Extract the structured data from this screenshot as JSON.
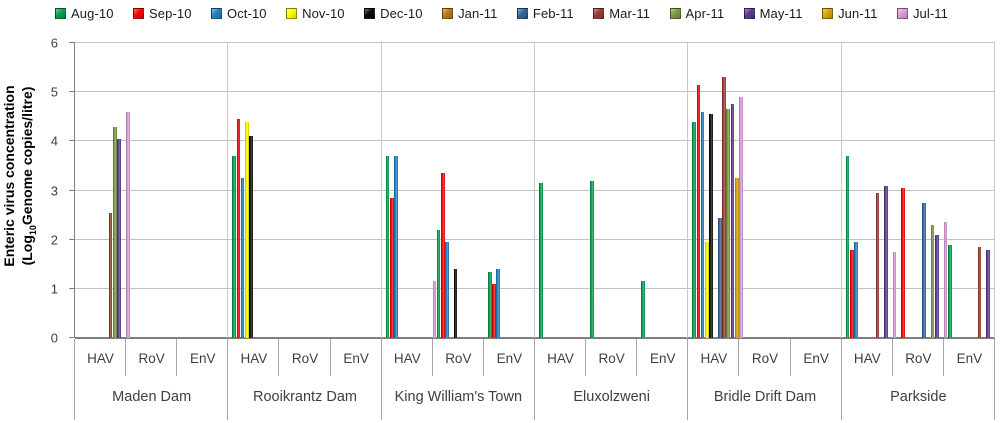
{
  "y_axis": {
    "title_line1": "Enteric virus concentration",
    "title_line2_pre": "(Log",
    "title_sub": "10",
    "title_line2_post": "Genome copies/litre)",
    "ticks": [
      6,
      5,
      4,
      3,
      2,
      1,
      0
    ]
  },
  "chart_data": {
    "type": "bar",
    "title": "",
    "xlabel": "",
    "ylabel": "Enteric virus concentration (Log10 Genome copies/litre)",
    "ylim": [
      0,
      6
    ],
    "yticks": [
      0,
      1,
      2,
      3,
      4,
      5,
      6
    ],
    "grid": true,
    "legend_position": "top",
    "months": [
      "Aug-10",
      "Sep-10",
      "Oct-10",
      "Nov-10",
      "Dec-10",
      "Jan-11",
      "Feb-11",
      "Mar-11",
      "Apr-11",
      "May-11",
      "Jun-11",
      "Jul-11"
    ],
    "colors": {
      "Aug-10": "#00a14b",
      "Sep-10": "#fe0000",
      "Oct-10": "#1f81c4",
      "Nov-10": "#ffff00",
      "Dec-10": "#0a0a0a",
      "Jan-11": "#bf7817",
      "Feb-11": "#31659c",
      "Mar-11": "#9c3a32",
      "Apr-11": "#7c9a3d",
      "May-11": "#5b3a8f",
      "Jun-11": "#d9a400",
      "Jul-11": "#de9cdb"
    },
    "virus_types": [
      "HAV",
      "RoV",
      "EnV"
    ],
    "sites": [
      {
        "name": "Maden Dam",
        "viruses": [
          {
            "name": "HAV",
            "values": {
              "Mar-11": 2.55,
              "Apr-11": 4.3,
              "May-11": 4.05,
              "Jul-11": 4.6
            }
          },
          {
            "name": "RoV",
            "values": {}
          },
          {
            "name": "EnV",
            "values": {}
          }
        ]
      },
      {
        "name": "Rooikrantz Dam",
        "viruses": [
          {
            "name": "HAV",
            "values": {
              "Aug-10": 3.7,
              "Sep-10": 4.45,
              "Oct-10": 3.25,
              "Nov-10": 4.4,
              "Dec-10": 4.1
            }
          },
          {
            "name": "RoV",
            "values": {}
          },
          {
            "name": "EnV",
            "values": {}
          }
        ]
      },
      {
        "name": "King William's Town",
        "viruses": [
          {
            "name": "HAV",
            "values": {
              "Aug-10": 3.7,
              "Sep-10": 2.85,
              "Oct-10": 3.7,
              "Jul-11": 1.15
            }
          },
          {
            "name": "RoV",
            "values": {
              "Aug-10": 2.2,
              "Sep-10": 3.35,
              "Oct-10": 1.95,
              "Dec-10": 1.4
            }
          },
          {
            "name": "EnV",
            "values": {
              "Aug-10": 1.35,
              "Sep-10": 1.1,
              "Oct-10": 1.4
            }
          }
        ]
      },
      {
        "name": "Eluxolzweni",
        "viruses": [
          {
            "name": "HAV",
            "values": {
              "Aug-10": 3.15
            }
          },
          {
            "name": "RoV",
            "values": {
              "Aug-10": 3.2
            }
          },
          {
            "name": "EnV",
            "values": {
              "Aug-10": 1.15
            }
          }
        ]
      },
      {
        "name": "Bridle Drift Dam",
        "viruses": [
          {
            "name": "HAV",
            "values": {
              "Aug-10": 4.4,
              "Sep-10": 5.15,
              "Oct-10": 4.6,
              "Nov-10": 1.95,
              "Dec-10": 4.55,
              "Feb-11": 2.45,
              "Mar-11": 5.3,
              "Apr-11": 4.65,
              "May-11": 4.75,
              "Jun-11": 3.25,
              "Jul-11": 4.9
            }
          },
          {
            "name": "RoV",
            "values": {}
          },
          {
            "name": "EnV",
            "values": {}
          }
        ]
      },
      {
        "name": "Parkside",
        "viruses": [
          {
            "name": "HAV",
            "values": {
              "Aug-10": 3.7,
              "Sep-10": 1.8,
              "Oct-10": 1.95,
              "Mar-11": 2.95,
              "May-11": 3.1,
              "Jul-11": 1.75
            }
          },
          {
            "name": "RoV",
            "values": {
              "Sep-10": 3.05,
              "Feb-11": 2.75,
              "Apr-11": 2.3,
              "May-11": 2.1,
              "Jul-11": 2.35
            }
          },
          {
            "name": "EnV",
            "values": {
              "Aug-10": 1.9,
              "Mar-11": 1.85,
              "May-11": 1.8
            }
          }
        ]
      }
    ]
  }
}
